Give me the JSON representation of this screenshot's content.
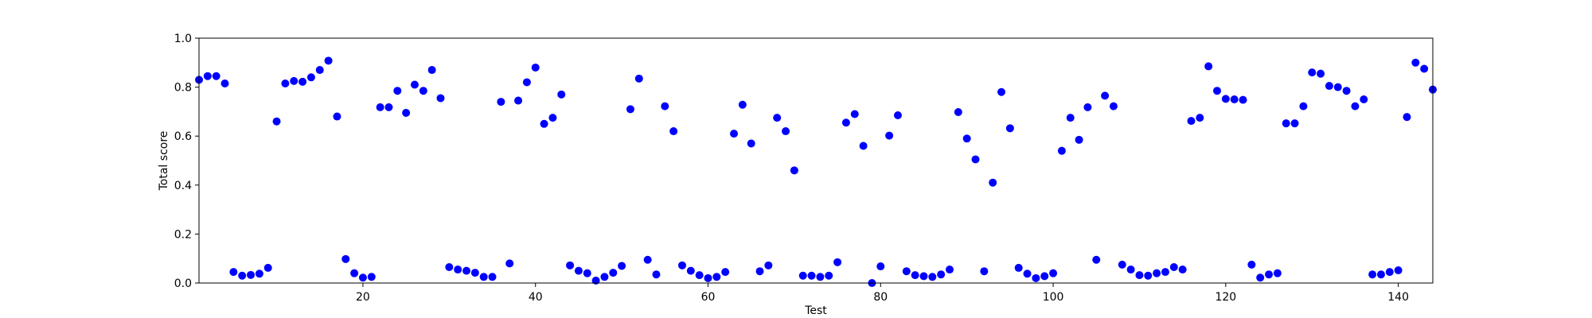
{
  "chart_data": {
    "type": "scatter",
    "xlabel": "Test",
    "ylabel": "Total score",
    "xlim": [
      1,
      144
    ],
    "ylim": [
      0.0,
      1.0
    ],
    "x_ticks": [
      20,
      40,
      60,
      80,
      100,
      120,
      140
    ],
    "y_ticks": [
      0.0,
      0.2,
      0.4,
      0.6,
      0.8,
      1.0
    ],
    "x_tick_labels": [
      "20",
      "40",
      "60",
      "80",
      "100",
      "120",
      "140"
    ],
    "y_tick_labels": [
      "0.0",
      "0.2",
      "0.4",
      "0.6",
      "0.8",
      "1.0"
    ],
    "grid": false,
    "marker_color": "#0000ff",
    "series": [
      {
        "x": [
          1,
          2,
          3,
          4,
          5,
          6,
          7,
          8,
          9,
          10,
          11,
          12,
          13,
          14,
          15,
          16,
          17,
          18,
          19,
          20,
          21,
          22,
          23,
          24,
          25,
          26,
          27,
          28,
          29,
          30,
          31,
          32,
          33,
          34,
          35,
          36,
          37,
          38,
          39,
          40,
          41,
          42,
          43,
          44,
          45,
          46,
          47,
          48,
          49,
          50,
          51,
          52,
          53,
          54,
          55,
          56,
          57,
          58,
          59,
          60,
          61,
          62,
          63,
          64,
          65,
          66,
          67,
          68,
          69,
          70,
          71,
          72,
          73,
          74,
          75,
          76,
          77,
          78,
          79,
          80,
          81,
          82,
          83,
          84,
          85,
          86,
          87,
          88,
          89,
          90,
          91,
          92,
          93,
          94,
          95,
          96,
          97,
          98,
          99,
          100,
          101,
          102,
          103,
          104,
          105,
          106,
          107,
          108,
          109,
          110,
          111,
          112,
          113,
          114,
          115,
          116,
          117,
          118,
          119,
          120,
          121,
          122,
          123,
          124,
          125,
          126,
          127,
          128,
          129,
          130,
          131,
          132,
          133,
          134,
          135,
          136,
          137,
          138,
          139,
          140,
          141,
          142,
          143,
          144
        ],
        "y": [
          0.83,
          0.845,
          0.845,
          0.815,
          0.045,
          0.03,
          0.033,
          0.038,
          0.062,
          0.66,
          0.815,
          0.825,
          0.822,
          0.84,
          0.87,
          0.908,
          0.68,
          0.098,
          0.04,
          0.022,
          0.025,
          0.718,
          0.718,
          0.785,
          0.695,
          0.81,
          0.785,
          0.87,
          0.755,
          0.065,
          0.055,
          0.05,
          0.042,
          0.025,
          0.025,
          0.74,
          0.08,
          0.745,
          0.82,
          0.88,
          0.65,
          0.675,
          0.77,
          0.072,
          0.05,
          0.04,
          0.01,
          0.025,
          0.042,
          0.07,
          0.71,
          0.835,
          0.095,
          0.035,
          0.722,
          0.62,
          0.072,
          0.05,
          0.032,
          0.02,
          0.025,
          0.045,
          0.61,
          0.728,
          0.57,
          0.048,
          0.072,
          0.675,
          0.62,
          0.46,
          0.03,
          0.03,
          0.025,
          0.03,
          0.085,
          0.655,
          0.69,
          0.56,
          0.0,
          0.068,
          0.602,
          0.685,
          0.048,
          0.032,
          0.028,
          0.025,
          0.035,
          0.055,
          0.698,
          0.59,
          0.505,
          0.048,
          0.41,
          0.78,
          0.632,
          0.062,
          0.038,
          0.02,
          0.028,
          0.04,
          0.54,
          0.675,
          0.585,
          0.718,
          0.095,
          0.765,
          0.722,
          0.075,
          0.055,
          0.032,
          0.03,
          0.04,
          0.045,
          0.065,
          0.055,
          0.662,
          0.675,
          0.885,
          0.785,
          0.752,
          0.75,
          0.748,
          0.075,
          0.022,
          0.035,
          0.04,
          0.652,
          0.652,
          0.722,
          0.86,
          0.855,
          0.805,
          0.8,
          0.785,
          0.722,
          0.75,
          0.035,
          0.035,
          0.045,
          0.052,
          0.678,
          0.9,
          0.875,
          0.79
        ]
      }
    ]
  }
}
